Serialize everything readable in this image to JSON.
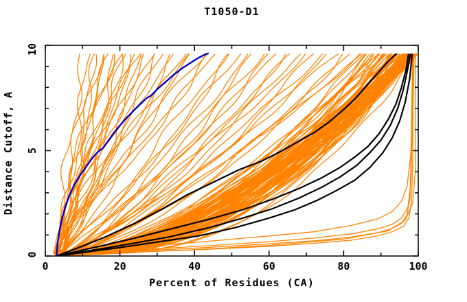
{
  "chart_data": {
    "type": "line",
    "title": "T1050-D1",
    "xlabel": "Percent of Residues (CA)",
    "ylabel": "Distance Cutoff, A",
    "xlim": [
      0,
      100
    ],
    "ylim": [
      0,
      10
    ],
    "x_major_ticks": [
      0,
      20,
      40,
      60,
      80,
      100
    ],
    "x_minor_ticks": [
      10,
      30,
      50,
      70,
      90
    ],
    "y_major_ticks": [
      0,
      5,
      10
    ],
    "y_minor_ticks": [
      1,
      2,
      3,
      4,
      6,
      7,
      8,
      9
    ],
    "grid": false,
    "legend": "none",
    "curve_top_y": 9.6,
    "x_origin": 3.0,
    "colors": {
      "models": "#FF8300",
      "highlight": "#000000",
      "reference": "#0000CD",
      "frame": "#000000",
      "background": "#FFFFFF"
    },
    "blue_curve": [
      [
        3,
        0
      ],
      [
        3.3,
        0.6
      ],
      [
        3.8,
        1.2
      ],
      [
        4.5,
        1.8
      ],
      [
        5.4,
        2.35
      ],
      [
        6.5,
        2.9
      ],
      [
        7.8,
        3.4
      ],
      [
        9.2,
        3.8
      ],
      [
        10.8,
        4.2
      ],
      [
        12.4,
        4.6
      ],
      [
        13.6,
        4.85
      ],
      [
        14.2,
        4.95
      ],
      [
        15.6,
        5.15
      ],
      [
        16.8,
        5.45
      ],
      [
        18.2,
        5.8
      ],
      [
        19.8,
        6.15
      ],
      [
        21.5,
        6.5
      ],
      [
        23.4,
        6.85
      ],
      [
        25.4,
        7.2
      ],
      [
        27.2,
        7.5
      ],
      [
        28.4,
        7.62
      ],
      [
        30.2,
        7.95
      ],
      [
        32.2,
        8.25
      ],
      [
        34.4,
        8.6
      ],
      [
        36.6,
        8.9
      ],
      [
        38.8,
        9.15
      ],
      [
        41,
        9.4
      ],
      [
        43,
        9.58
      ],
      [
        43.8,
        9.62
      ]
    ],
    "black_curves": [
      [
        [
          3,
          0
        ],
        [
          9,
          0.4
        ],
        [
          16,
          0.9
        ],
        [
          24,
          1.55
        ],
        [
          31,
          2.2
        ],
        [
          38,
          2.9
        ],
        [
          45,
          3.5
        ],
        [
          52,
          4.1
        ],
        [
          58,
          4.5
        ],
        [
          63,
          4.95
        ],
        [
          68,
          5.45
        ],
        [
          72,
          5.85
        ],
        [
          76,
          6.35
        ],
        [
          80,
          6.95
        ],
        [
          83,
          7.45
        ],
        [
          86,
          8.05
        ],
        [
          89,
          8.65
        ],
        [
          91.5,
          9.15
        ],
        [
          93.5,
          9.5
        ],
        [
          94.3,
          9.6
        ]
      ],
      [
        [
          3,
          0
        ],
        [
          13,
          0.4
        ],
        [
          24,
          0.85
        ],
        [
          34,
          1.3
        ],
        [
          44,
          1.75
        ],
        [
          53,
          2.2
        ],
        [
          61,
          2.7
        ],
        [
          68,
          3.2
        ],
        [
          74,
          3.7
        ],
        [
          79,
          4.2
        ],
        [
          83,
          4.7
        ],
        [
          86.5,
          5.2
        ],
        [
          89.5,
          5.8
        ],
        [
          92,
          6.5
        ],
        [
          94,
          7.2
        ],
        [
          95.5,
          8.0
        ],
        [
          96.8,
          8.9
        ],
        [
          97.4,
          9.6
        ]
      ],
      [
        [
          3,
          0
        ],
        [
          17,
          0.4
        ],
        [
          33,
          0.9
        ],
        [
          44,
          1.35
        ],
        [
          53,
          1.8
        ],
        [
          61,
          2.25
        ],
        [
          68,
          2.75
        ],
        [
          74,
          3.25
        ],
        [
          79,
          3.75
        ],
        [
          83.5,
          4.3
        ],
        [
          87,
          4.9
        ],
        [
          90,
          5.5
        ],
        [
          92.5,
          6.2
        ],
        [
          94.5,
          7.0
        ],
        [
          96,
          7.9
        ],
        [
          97.2,
          8.9
        ],
        [
          97.9,
          9.6
        ]
      ],
      [
        [
          3,
          0
        ],
        [
          20,
          0.4
        ],
        [
          41,
          0.95
        ],
        [
          51,
          1.35
        ],
        [
          60,
          1.8
        ],
        [
          67,
          2.2
        ],
        [
          73,
          2.65
        ],
        [
          78,
          3.1
        ],
        [
          83,
          3.6
        ],
        [
          87,
          4.2
        ],
        [
          90.5,
          4.9
        ],
        [
          93,
          5.6
        ],
        [
          95,
          6.4
        ],
        [
          96.5,
          7.3
        ],
        [
          97.7,
          8.4
        ],
        [
          98.4,
          9.6
        ]
      ]
    ],
    "good_model_curves": [
      [
        [
          3,
          0.05
        ],
        [
          15,
          0.15
        ],
        [
          30,
          0.28
        ],
        [
          45,
          0.42
        ],
        [
          60,
          0.58
        ],
        [
          72,
          0.72
        ],
        [
          82,
          0.9
        ],
        [
          89,
          1.1
        ],
        [
          93,
          1.3
        ],
        [
          95.5,
          1.55
        ],
        [
          97,
          1.95
        ],
        [
          97.8,
          2.8
        ],
        [
          98.1,
          5.0
        ],
        [
          98.3,
          7.5
        ],
        [
          98.5,
          9.6
        ]
      ],
      [
        [
          3,
          0.05
        ],
        [
          15,
          0.2
        ],
        [
          30,
          0.35
        ],
        [
          45,
          0.5
        ],
        [
          60,
          0.68
        ],
        [
          72,
          0.85
        ],
        [
          82,
          1.05
        ],
        [
          89,
          1.28
        ],
        [
          93,
          1.5
        ],
        [
          95.5,
          1.8
        ],
        [
          97.2,
          2.3
        ],
        [
          98,
          3.4
        ],
        [
          98.4,
          6.0
        ],
        [
          98.6,
          9.6
        ]
      ],
      [
        [
          3,
          0.05
        ],
        [
          15,
          0.12
        ],
        [
          30,
          0.22
        ],
        [
          45,
          0.33
        ],
        [
          60,
          0.46
        ],
        [
          72,
          0.6
        ],
        [
          82,
          0.75
        ],
        [
          89,
          0.95
        ],
        [
          93,
          1.15
        ],
        [
          96,
          1.4
        ],
        [
          97.5,
          1.8
        ],
        [
          98.2,
          2.6
        ],
        [
          98.5,
          4.5
        ],
        [
          98.7,
          9.6
        ]
      ],
      [
        [
          3,
          0.1
        ],
        [
          15,
          0.3
        ],
        [
          30,
          0.5
        ],
        [
          45,
          0.72
        ],
        [
          60,
          0.95
        ],
        [
          72,
          1.15
        ],
        [
          82,
          1.45
        ],
        [
          89,
          1.75
        ],
        [
          93,
          2.1
        ],
        [
          95.5,
          2.6
        ],
        [
          97,
          3.3
        ],
        [
          98,
          4.8
        ],
        [
          98.6,
          7.0
        ],
        [
          98.9,
          9.6
        ]
      ],
      [
        [
          3,
          0.05
        ],
        [
          20,
          0.15
        ],
        [
          40,
          0.3
        ],
        [
          60,
          0.5
        ],
        [
          80,
          0.8
        ],
        [
          92,
          1.2
        ],
        [
          96.5,
          1.7
        ],
        [
          98.5,
          2.5
        ],
        [
          99.2,
          4.0
        ],
        [
          99.3,
          9.6
        ]
      ]
    ],
    "orange_curves": [
      [
        10,
        1.1
      ],
      [
        12,
        1.05
      ],
      [
        13,
        1.22
      ],
      [
        14,
        0.95
      ],
      [
        15,
        1.12
      ],
      [
        16,
        1.3
      ],
      [
        17,
        1.0
      ],
      [
        18,
        1.16
      ],
      [
        19,
        0.9
      ],
      [
        20,
        1.25
      ],
      [
        21,
        1.05
      ],
      [
        22,
        1.15
      ],
      [
        23,
        0.96
      ],
      [
        24,
        1.1
      ],
      [
        25,
        1.2
      ],
      [
        26,
        1.02
      ],
      [
        27,
        1.14
      ],
      [
        28,
        0.92
      ],
      [
        30,
        1.08
      ],
      [
        32,
        1.18
      ],
      [
        33,
        0.98
      ],
      [
        35,
        1.1
      ],
      [
        37,
        0.95
      ],
      [
        38,
        1.2
      ],
      [
        40,
        1.06
      ],
      [
        42,
        1.12
      ],
      [
        44,
        0.97
      ],
      [
        46,
        1.08
      ],
      [
        48,
        0.85
      ],
      [
        50,
        0.78
      ],
      [
        52,
        0.88
      ],
      [
        54,
        0.8
      ],
      [
        56,
        0.72
      ],
      [
        58,
        0.82
      ],
      [
        60,
        0.75
      ],
      [
        62,
        0.85
      ],
      [
        64,
        0.7
      ],
      [
        66,
        0.8
      ],
      [
        68,
        0.74
      ],
      [
        70,
        0.82
      ],
      [
        72,
        0.68
      ],
      [
        74,
        0.78
      ],
      [
        76,
        0.72
      ],
      [
        78,
        0.8
      ],
      [
        80,
        0.66
      ],
      [
        82,
        0.74
      ],
      [
        84,
        0.7
      ],
      [
        85,
        0.78
      ],
      [
        85,
        0.55
      ],
      [
        86,
        0.48
      ],
      [
        86.5,
        0.6
      ],
      [
        87,
        0.42
      ],
      [
        87.5,
        0.55
      ],
      [
        88,
        0.5
      ],
      [
        88.5,
        0.62
      ],
      [
        89,
        0.45
      ],
      [
        89.5,
        0.58
      ],
      [
        90,
        0.4
      ],
      [
        90.3,
        0.52
      ],
      [
        90.6,
        0.65
      ],
      [
        91,
        0.47
      ],
      [
        91.3,
        0.56
      ],
      [
        91.6,
        0.38
      ],
      [
        92,
        0.5
      ],
      [
        92.3,
        0.6
      ],
      [
        92.6,
        0.44
      ],
      [
        93,
        0.54
      ],
      [
        93.3,
        0.64
      ],
      [
        93.6,
        0.4
      ],
      [
        94,
        0.5
      ],
      [
        94.3,
        0.58
      ],
      [
        94.6,
        0.46
      ],
      [
        95,
        0.55
      ],
      [
        95.3,
        0.36
      ],
      [
        95.6,
        0.52
      ],
      [
        96,
        0.62
      ],
      [
        96.2,
        0.44
      ],
      [
        96.5,
        0.55
      ],
      [
        96.7,
        0.48
      ],
      [
        97,
        0.6
      ],
      [
        97.2,
        0.4
      ],
      [
        97.4,
        0.52
      ],
      [
        97.6,
        0.58
      ],
      [
        97.8,
        0.45
      ],
      [
        98,
        0.55
      ],
      [
        98.2,
        0.5
      ],
      [
        98.4,
        0.62
      ],
      [
        98.6,
        0.42
      ],
      [
        98.8,
        0.55
      ],
      [
        99,
        0.48
      ],
      [
        99.2,
        0.58
      ],
      [
        99.4,
        0.52
      ],
      [
        99.5,
        0.45
      ],
      [
        99.5,
        0.6
      ],
      [
        99.3,
        0.38
      ],
      [
        99.1,
        0.55
      ],
      [
        98.9,
        0.5
      ],
      [
        98.7,
        0.6
      ],
      [
        98.5,
        0.44
      ],
      [
        98.3,
        0.56
      ],
      [
        98.1,
        0.5
      ],
      [
        97.9,
        0.63
      ],
      [
        97.7,
        0.47
      ],
      [
        97.5,
        0.55
      ],
      [
        97.3,
        0.42
      ],
      [
        97.1,
        0.57
      ],
      [
        96.9,
        0.5
      ],
      [
        96.6,
        0.64
      ],
      [
        96.3,
        0.46
      ],
      [
        96.1,
        0.54
      ],
      [
        93.2,
        0.5
      ],
      [
        93.8,
        0.58
      ],
      [
        94.2,
        0.44
      ],
      [
        94.8,
        0.55
      ],
      [
        95.2,
        0.62
      ],
      [
        95.8,
        0.47
      ],
      [
        96.4,
        0.56
      ],
      [
        96.8,
        0.5
      ],
      [
        97.15,
        0.6
      ],
      [
        97.45,
        0.45
      ],
      [
        97.75,
        0.54
      ],
      [
        98.05,
        0.48
      ],
      [
        98.35,
        0.58
      ],
      [
        98.65,
        0.52
      ],
      [
        98.95,
        0.62
      ],
      [
        99.15,
        0.46
      ],
      [
        99.35,
        0.55
      ],
      [
        99.45,
        0.5
      ],
      [
        99.25,
        0.6
      ],
      [
        99.05,
        0.44
      ],
      [
        98.75,
        0.56
      ],
      [
        98.45,
        0.5
      ],
      [
        98.15,
        0.6
      ],
      [
        97.85,
        0.46
      ],
      [
        97.55,
        0.57
      ],
      [
        97.25,
        0.5
      ],
      [
        96.95,
        0.63
      ],
      [
        96.55,
        0.48
      ]
    ]
  }
}
